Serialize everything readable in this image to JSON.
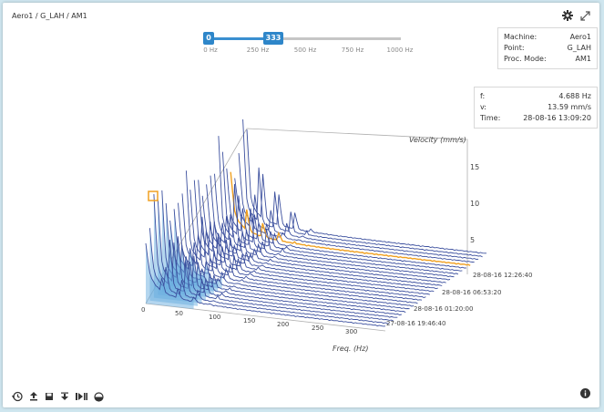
{
  "breadcrumb": "Aero1 / G_LAH / AM1",
  "slider": {
    "min_label": "0",
    "max_label": "333",
    "ticks": [
      "0 Hz",
      "250 Hz",
      "500 Hz",
      "750 Hz",
      "1000 Hz"
    ]
  },
  "machine_box": {
    "rows": [
      {
        "label": "Machine:",
        "value": "Aero1"
      },
      {
        "label": "Point:",
        "value": "G_LAH"
      },
      {
        "label": "Proc. Mode:",
        "value": "AM1"
      }
    ]
  },
  "cursor_box": {
    "rows": [
      {
        "label": "f:",
        "value": "4.688 Hz"
      },
      {
        "label": "v:",
        "value": "13.59 mm/s"
      },
      {
        "label": "Time:",
        "value": "28-08-16 13:09:20"
      }
    ]
  },
  "chart_data": {
    "type": "waterfall",
    "zlabel": "Velocity (mm/s)",
    "xlabel": "Freq. (Hz)",
    "x_ticks": [
      "0",
      "50",
      "100",
      "150",
      "200",
      "250",
      "300"
    ],
    "z_ticks": [
      "5",
      "10",
      "15"
    ],
    "time_ticks": [
      "28-08-16 12:26:40",
      "28-08-16 06:53:20",
      "28-08-16 01:20:00",
      "27-08-16 19:46:40"
    ],
    "zlim": [
      0,
      17
    ],
    "xlim": [
      0,
      333
    ]
  },
  "colors": {
    "accent": "#2e86c9",
    "trace": "#3b4f9e",
    "highlight": "#f0a020",
    "fill": "#6aaee0"
  },
  "icons": [
    "history-icon",
    "export-icon",
    "save-icon",
    "share-icon",
    "play-step-icon",
    "contrast-icon"
  ]
}
